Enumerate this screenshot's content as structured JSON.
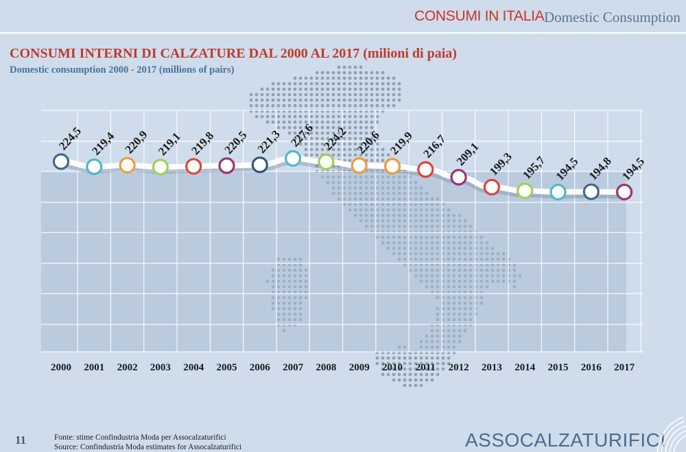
{
  "header": {
    "title_it": "CONSUMI IN ITALIA",
    "title_en": "Domestic Consumption"
  },
  "footer": {
    "page_number": "11",
    "source_it": "Fonte: stime Confindustria Moda per Assocalzaturifici",
    "source_en": "Source: Confindustria Moda estimates for Assocalzaturifici",
    "brand": "ASSOCALZATURIFICI"
  },
  "colors": {
    "title_red": "#c0392b",
    "subtitle_blue": "#46739b",
    "background": "#cfdceb",
    "plot_band": "#a9bdd4",
    "marker_palette": [
      "#3d6b87",
      "#4fb9c5",
      "#f0993e",
      "#9fcf59",
      "#e2433b",
      "#9a3472",
      "#2e5a78"
    ]
  },
  "chart_data": {
    "type": "line",
    "title": "CONSUMI INTERNI DI CALZATURE DAL 2000 AL 2017 (milioni di paia)",
    "subtitle": "Domestic consumption 2000 - 2017 (millions of pairs)",
    "xlabel": "",
    "ylabel": "",
    "x": [
      "2000",
      "2001",
      "2002",
      "2003",
      "2004",
      "2005",
      "2006",
      "2007",
      "2008",
      "2009",
      "2010",
      "2011",
      "2012",
      "2013",
      "2014",
      "2015",
      "2016",
      "2017"
    ],
    "series": [
      {
        "values": [
          224.5,
          219.4,
          220.9,
          219.1,
          219.8,
          220.5,
          221.3,
          227.6,
          224.2,
          220.6,
          219.9,
          216.7,
          209.1,
          199.3,
          195.7,
          194.5,
          194.8,
          194.5
        ],
        "labels": [
          "224,5",
          "219,4",
          "220,9",
          "219,1",
          "219,8",
          "220,5",
          "221,3",
          "227,6",
          "224,2",
          "220,6",
          "219,9",
          "216,7",
          "209,1",
          "199,3",
          "195,7",
          "194,5",
          "194,8",
          "194,5"
        ],
        "marker_colors": [
          "#3d6b87",
          "#4fb9c5",
          "#f0993e",
          "#9fcf59",
          "#e2433b",
          "#9a3472",
          "#2e5a78",
          "#4fb9c5",
          "#9fcf59",
          "#f0993e",
          "#f0993e",
          "#e2433b",
          "#9a3472",
          "#e2433b",
          "#9fcf59",
          "#4fb9c5",
          "#3d6b87",
          "#9a3472"
        ]
      }
    ],
    "grid": true,
    "legend": "none"
  }
}
